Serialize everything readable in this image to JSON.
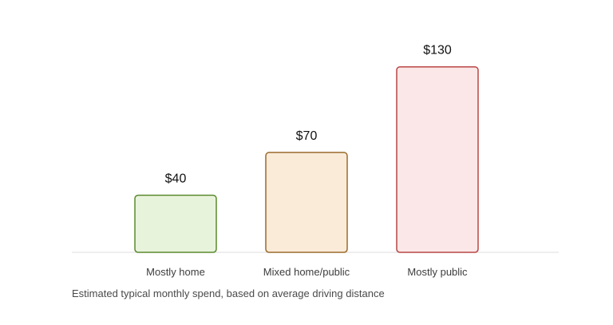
{
  "chart_data": {
    "type": "bar",
    "categories": [
      "Mostly home",
      "Mixed home/public",
      "Mostly public"
    ],
    "values": [
      40,
      70,
      130
    ],
    "value_labels": [
      "$40",
      "$70",
      "$130"
    ],
    "title": "",
    "xlabel": "",
    "ylabel": "",
    "ylim": [
      0,
      150
    ],
    "grid": false,
    "legend": "none",
    "colors": {
      "fills": [
        "#e8f3dc",
        "#faebd9",
        "#fbe7e7"
      ],
      "strokes": [
        "#5a8a2e",
        "#9a6b2c",
        "#b84646"
      ],
      "baseline": "#dcdcdc",
      "value_label": "#111111",
      "category_label": "#3d3d3d"
    }
  },
  "caption": "Estimated typical monthly spend, based on average driving distance"
}
